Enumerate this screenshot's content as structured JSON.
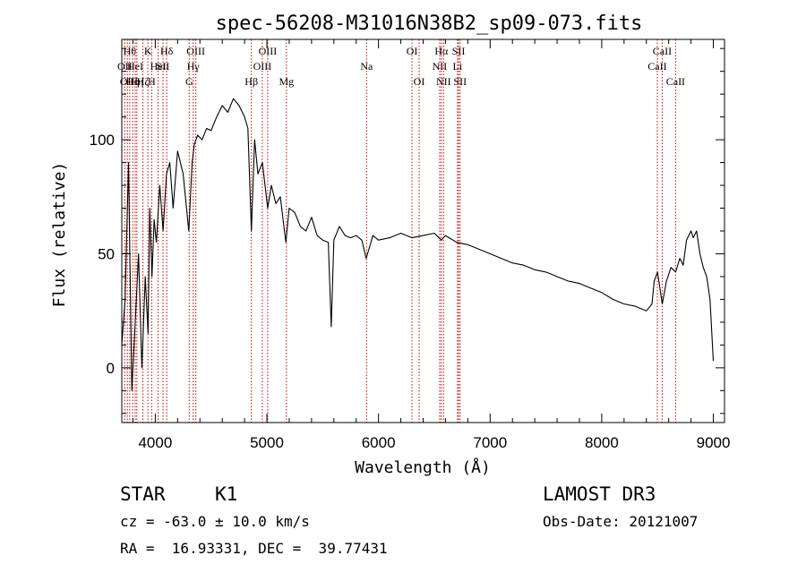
{
  "chart_data": {
    "type": "line",
    "title": "spec-56208-M31016N38B2_sp09-073.fits",
    "xlabel": "Wavelength (Å)",
    "ylabel": "Flux (relative)",
    "xlim": [
      3700,
      9100
    ],
    "ylim": [
      -24,
      144
    ],
    "x_ticks": [
      4000,
      5000,
      6000,
      7000,
      8000,
      9000
    ],
    "y_ticks": [
      0,
      50,
      100
    ],
    "grid": false,
    "series": [
      {
        "name": "flux",
        "x": [
          3700,
          3730,
          3760,
          3790,
          3820,
          3850,
          3880,
          3910,
          3935,
          3950,
          3970,
          3990,
          4010,
          4040,
          4070,
          4100,
          4130,
          4160,
          4200,
          4250,
          4300,
          4330,
          4350,
          4380,
          4420,
          4460,
          4500,
          4550,
          4600,
          4650,
          4700,
          4750,
          4800,
          4830,
          4861,
          4890,
          4920,
          4960,
          5007,
          5040,
          5080,
          5120,
          5170,
          5200,
          5250,
          5300,
          5350,
          5400,
          5450,
          5500,
          5550,
          5577,
          5600,
          5650,
          5700,
          5750,
          5800,
          5850,
          5890,
          5950,
          6000,
          6100,
          6200,
          6300,
          6400,
          6500,
          6563,
          6600,
          6700,
          6800,
          6900,
          7000,
          7100,
          7200,
          7300,
          7400,
          7500,
          7600,
          7700,
          7800,
          7900,
          8000,
          8100,
          8200,
          8300,
          8400,
          8450,
          8470,
          8500,
          8542,
          8580,
          8620,
          8662,
          8700,
          8730,
          8760,
          8780,
          8800,
          8820,
          8850,
          8880,
          8910,
          8940,
          8970,
          9000
        ],
        "y": [
          10,
          30,
          90,
          -10,
          20,
          50,
          0,
          40,
          15,
          70,
          40,
          65,
          55,
          80,
          60,
          85,
          90,
          70,
          95,
          85,
          60,
          90,
          98,
          102,
          100,
          105,
          104,
          110,
          115,
          112,
          118,
          115,
          110,
          105,
          60,
          100,
          85,
          90,
          70,
          80,
          72,
          75,
          55,
          70,
          68,
          62,
          60,
          66,
          58,
          56,
          55,
          18,
          56,
          62,
          58,
          57,
          58,
          56,
          48,
          58,
          56,
          57,
          59,
          57,
          58,
          59,
          56,
          58,
          55,
          54,
          52,
          50,
          48,
          46,
          45,
          43,
          42,
          40,
          38,
          37,
          35,
          33,
          30,
          28,
          27,
          25,
          28,
          38,
          42,
          28,
          38,
          44,
          42,
          48,
          45,
          56,
          58,
          60,
          57,
          60,
          50,
          44,
          40,
          30,
          3
        ]
      }
    ],
    "lines": [
      {
        "wl": 3727,
        "label": "OII",
        "row": 2
      },
      {
        "wl": 3750,
        "label": "OII",
        "row": 3
      },
      {
        "wl": 3771,
        "label": "Hθ",
        "row": 1
      },
      {
        "wl": 3798,
        "label": "Hη",
        "row": 3
      },
      {
        "wl": 3820,
        "label": "HeI",
        "row": 2
      },
      {
        "wl": 3835,
        "label": "Hη",
        "row": 3
      },
      {
        "wl": 3889,
        "label": "Hζ",
        "row": 3
      },
      {
        "wl": 3934,
        "label": "K",
        "row": 1
      },
      {
        "wl": 3968,
        "label": "H",
        "row": 3
      },
      {
        "wl": 4026,
        "label": "HeI",
        "row": 2
      },
      {
        "wl": 4069,
        "label": "SII",
        "row": 2
      },
      {
        "wl": 4102,
        "label": "Hδ",
        "row": 1
      },
      {
        "wl": 4304,
        "label": "G",
        "row": 3
      },
      {
        "wl": 4340,
        "label": "Hγ",
        "row": 2
      },
      {
        "wl": 4363,
        "label": "OIII",
        "row": 1
      },
      {
        "wl": 4861,
        "label": "Hβ",
        "row": 3
      },
      {
        "wl": 4959,
        "label": "OIII",
        "row": 2
      },
      {
        "wl": 5007,
        "label": "OIII",
        "row": 1
      },
      {
        "wl": 5175,
        "label": "Mg",
        "row": 3
      },
      {
        "wl": 5893,
        "label": "Na",
        "row": 2
      },
      {
        "wl": 6300,
        "label": "OI",
        "row": 1
      },
      {
        "wl": 6364,
        "label": "OI",
        "row": 3
      },
      {
        "wl": 6548,
        "label": "NII",
        "row": 2
      },
      {
        "wl": 6563,
        "label": "Hα",
        "row": 1
      },
      {
        "wl": 6583,
        "label": "NII",
        "row": 3
      },
      {
        "wl": 6708,
        "label": "Li",
        "row": 2
      },
      {
        "wl": 6717,
        "label": "SII",
        "row": 1
      },
      {
        "wl": 6731,
        "label": "SII",
        "row": 3
      },
      {
        "wl": 8498,
        "label": "CaII",
        "row": 2
      },
      {
        "wl": 8542,
        "label": "CaII",
        "row": 1
      },
      {
        "wl": 8662,
        "label": "CaII",
        "row": 3
      }
    ]
  },
  "info": {
    "object_class": "STAR",
    "subclass": "K1",
    "survey": "LAMOST DR3",
    "velocity": "cz = -63.0 ± 10.0 km/s",
    "obs_date": "Obs-Date: 20121007",
    "coords": "RA =  16.93331, DEC =  39.77431"
  },
  "colors": {
    "line_marker": "#cc0000",
    "spectrum": "#000000",
    "axes": "#000000"
  }
}
